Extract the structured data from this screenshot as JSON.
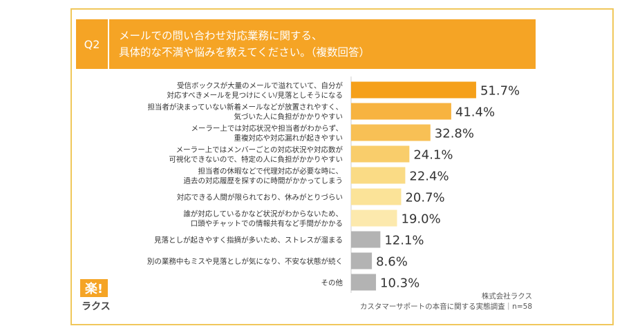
{
  "question": {
    "label": "Q2",
    "title_lines": [
      "メールでの問い合わせ対応業務に関する、",
      "具体的な不満や悩みを教えてください。（複数回答）"
    ]
  },
  "brand": {
    "mark": "楽!",
    "name": "ラクス"
  },
  "source": {
    "company": "株式会社ラクス",
    "survey": "カスタマーサポートの本音に関する実態調査｜n=58"
  },
  "chart_data": {
    "type": "bar",
    "orientation": "horizontal",
    "categories": [
      [
        "受信ボックスが大量のメールで溢れていて、自分が",
        "対応すべきメールを見つけにくい/見落としそうになる"
      ],
      [
        "担当者が決まっていない新着メールなどが放置されやすく、",
        "気づいた人に負担がかかりやすい"
      ],
      [
        "メーラー上では対応状況や担当者がわからず、",
        "重複対応や対応漏れが起きやすい"
      ],
      [
        "メーラー上ではメンバーごとの対応状況や対応数が",
        "可視化できないので、特定の人に負担がかかりやすい"
      ],
      [
        "担当者の休暇などで代理対応が必要な時に、",
        "過去の対応履歴を探すのに時間がかかってしまう"
      ],
      [
        "対応できる人間が限られており、休みがとりづらい"
      ],
      [
        "誰が対応しているかなど状況がわからないため、",
        "口頭やチャットでの情報共有など手間がかかる"
      ],
      [
        "見落としが起きやすく指摘が多いため、ストレスが溜まる"
      ],
      [
        "別の業務中もミスや見落としが気になり、不安な状態が続く"
      ],
      [
        "その他"
      ]
    ],
    "values": [
      51.7,
      41.4,
      32.8,
      24.1,
      22.4,
      20.7,
      19.0,
      12.1,
      8.6,
      10.3
    ],
    "value_labels": [
      "51.7%",
      "41.4%",
      "32.8%",
      "24.1%",
      "22.4%",
      "20.7%",
      "19.0%",
      "12.1%",
      "8.6%",
      "10.3%"
    ],
    "colors": [
      "#f5a01a",
      "#f7b340",
      "#f8c055",
      "#f9cd6b",
      "#fadb85",
      "#fbe398",
      "#fce9ad",
      "#b3b3b3",
      "#b3b3b3",
      "#b3b3b3"
    ],
    "xlim": [
      0,
      60
    ],
    "unit": "%"
  }
}
